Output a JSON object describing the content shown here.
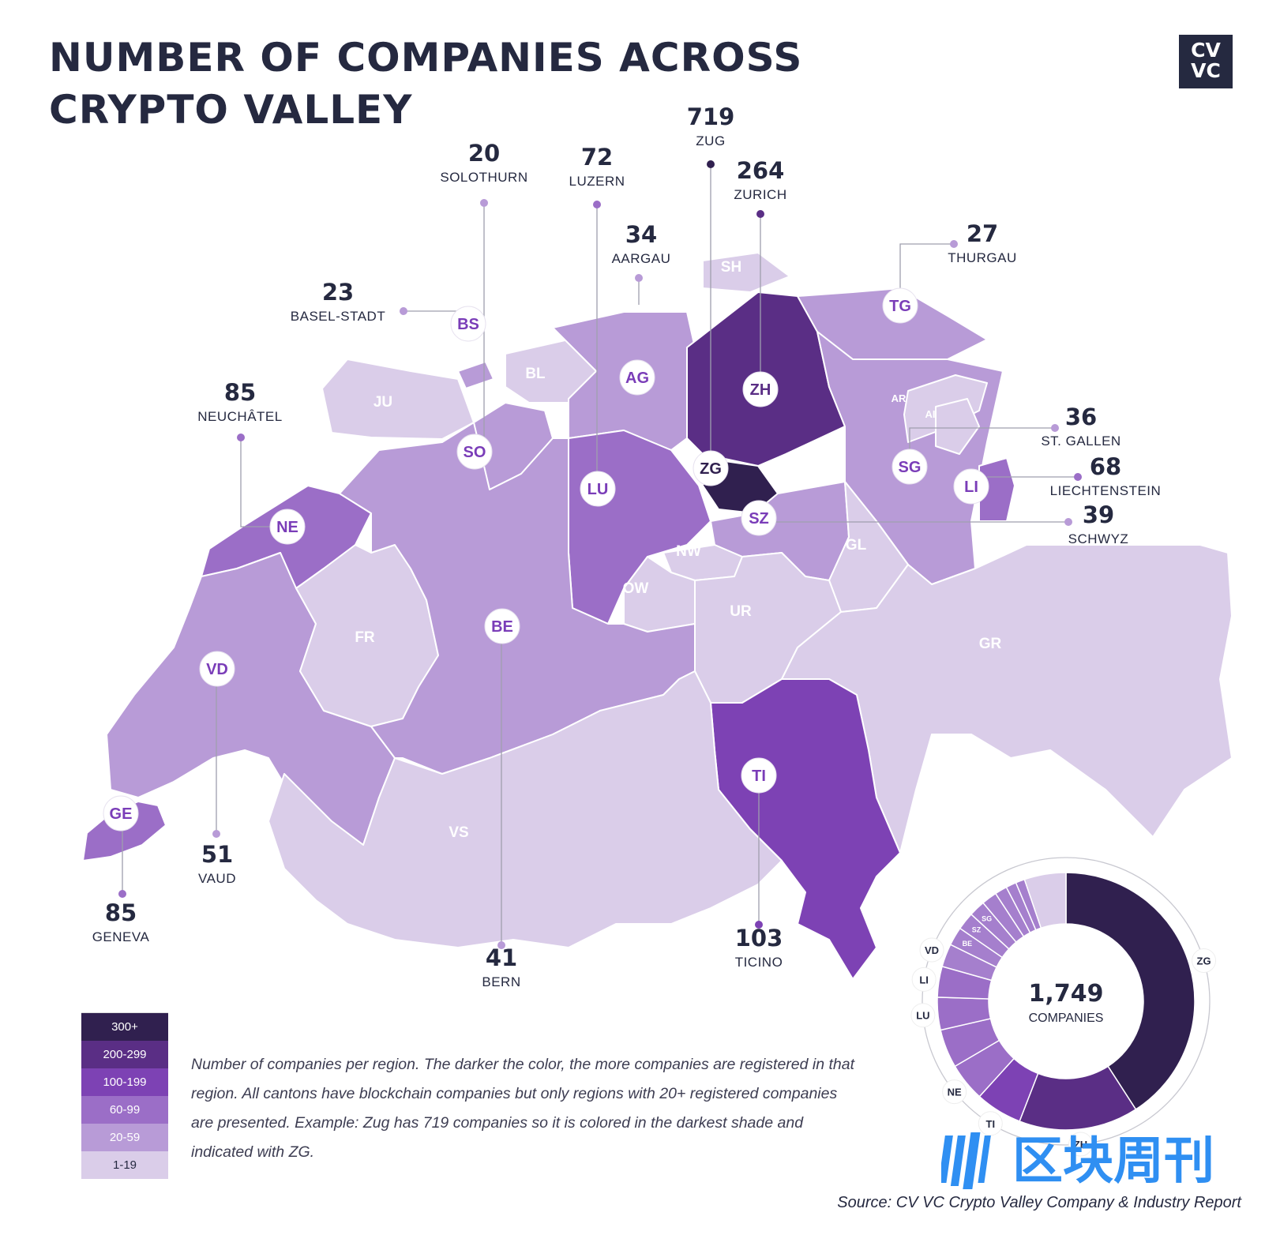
{
  "title": {
    "line1": "NUMBER OF COMPANIES ACROSS",
    "line2": "CRYPTO VALLEY"
  },
  "logo": {
    "line1": "CV",
    "line2": "VC"
  },
  "colors": {
    "tier_300_plus": "#30204f",
    "tier_200_299": "#5a2e85",
    "tier_100_199": "#7d42b4",
    "tier_60_99": "#9b6ec7",
    "tier_20_59": "#b89bd7",
    "tier_1_19": "#dacde9",
    "text_dark": "#252940",
    "badge_text": "#7a3db8"
  },
  "map_cantons": [
    {
      "code": "ZG",
      "tier": "300+"
    },
    {
      "code": "ZH",
      "tier": "200-299"
    },
    {
      "code": "TI",
      "tier": "100-199"
    },
    {
      "code": "LU",
      "tier": "60-99"
    },
    {
      "code": "NE",
      "tier": "60-99"
    },
    {
      "code": "GE",
      "tier": "60-99"
    },
    {
      "code": "LI",
      "tier": "60-99"
    },
    {
      "code": "VD",
      "tier": "20-59"
    },
    {
      "code": "BE",
      "tier": "20-59"
    },
    {
      "code": "SG",
      "tier": "20-59"
    },
    {
      "code": "SZ",
      "tier": "20-59"
    },
    {
      "code": "AG",
      "tier": "20-59"
    },
    {
      "code": "TG",
      "tier": "20-59"
    },
    {
      "code": "BS",
      "tier": "20-59"
    },
    {
      "code": "SO",
      "tier": "20-59"
    },
    {
      "code": "JU",
      "tier": "1-19"
    },
    {
      "code": "BL",
      "tier": "1-19"
    },
    {
      "code": "SH",
      "tier": "1-19"
    },
    {
      "code": "FR",
      "tier": "1-19"
    },
    {
      "code": "VS",
      "tier": "1-19"
    },
    {
      "code": "OW",
      "tier": "1-19"
    },
    {
      "code": "NW",
      "tier": "1-19"
    },
    {
      "code": "UR",
      "tier": "1-19"
    },
    {
      "code": "GL",
      "tier": "1-19"
    },
    {
      "code": "GR",
      "tier": "1-19"
    },
    {
      "code": "AR",
      "tier": "1-19"
    },
    {
      "code": "AI",
      "tier": "1-19"
    }
  ],
  "callouts": [
    {
      "code": "ZG",
      "value": "719",
      "name": "ZUG"
    },
    {
      "code": "ZH",
      "value": "264",
      "name": "ZURICH"
    },
    {
      "code": "SO",
      "value": "20",
      "name": "SOLOTHURN"
    },
    {
      "code": "LU",
      "value": "72",
      "name": "LUZERN"
    },
    {
      "code": "AG",
      "value": "34",
      "name": "AARGAU"
    },
    {
      "code": "TG",
      "value": "27",
      "name": "THURGAU"
    },
    {
      "code": "BS",
      "value": "23",
      "name": "BASEL-STADT"
    },
    {
      "code": "NE",
      "value": "85",
      "name": "NEUCHÂTEL"
    },
    {
      "code": "SG",
      "value": "36",
      "name": "ST. GALLEN"
    },
    {
      "code": "LI",
      "value": "68",
      "name": "LIECHTENSTEIN"
    },
    {
      "code": "SZ",
      "value": "39",
      "name": "SCHWYZ"
    },
    {
      "code": "VD",
      "value": "51",
      "name": "VAUD"
    },
    {
      "code": "GE",
      "value": "85",
      "name": "GENEVA"
    },
    {
      "code": "BE",
      "value": "41",
      "name": "BERN"
    },
    {
      "code": "TI",
      "value": "103",
      "name": "TICINO"
    }
  ],
  "legend": [
    {
      "label": "300+",
      "color": "#30204f",
      "text_color": "#ffffff"
    },
    {
      "label": "200-299",
      "color": "#5a2e85",
      "text_color": "#ffffff"
    },
    {
      "label": "100-199",
      "color": "#7d42b4",
      "text_color": "#ffffff"
    },
    {
      "label": "60-99",
      "color": "#9b6ec7",
      "text_color": "#ffffff"
    },
    {
      "label": "20-59",
      "color": "#b89bd7",
      "text_color": "#ffffff"
    },
    {
      "label": "1-19",
      "color": "#dacde9",
      "text_color": "#252940"
    }
  ],
  "note": "Number of companies per region. The darker the color, the more companies are registered in that region. All cantons have blockchain companies but only regions with 20+ registered companies are presented. Example: Zug has 719 companies so it is colored in the darkest shade and indicated with ZG.",
  "chart_data": {
    "type": "pie",
    "subtype": "donut",
    "center_value": "1,749",
    "center_label": "COMPANIES",
    "slices": [
      {
        "label": "ZG",
        "value": 719,
        "color": "#30204f"
      },
      {
        "label": "ZH",
        "value": 264,
        "color": "#5a2e85"
      },
      {
        "label": "TI",
        "value": 103,
        "color": "#7d42b4"
      },
      {
        "label": "NE",
        "value": 85,
        "color": "#9b6ec7"
      },
      {
        "label": "",
        "value": 85,
        "color": "#9b6ec7"
      },
      {
        "label": "LU",
        "value": 72,
        "color": "#9b6ec7"
      },
      {
        "label": "LI",
        "value": 68,
        "color": "#9b6ec7"
      },
      {
        "label": "VD",
        "value": 51,
        "color": "#a57fcd"
      },
      {
        "label": "BE",
        "value": 41,
        "color": "#a57fcd"
      },
      {
        "label": "SZ",
        "value": 39,
        "color": "#a57fcd"
      },
      {
        "label": "SG",
        "value": 36,
        "color": "#a57fcd"
      },
      {
        "label": "",
        "value": 34,
        "color": "#a57fcd"
      },
      {
        "label": "",
        "value": 27,
        "color": "#a57fcd"
      },
      {
        "label": "",
        "value": 23,
        "color": "#a57fcd"
      },
      {
        "label": "",
        "value": 20,
        "color": "#a57fcd"
      },
      {
        "label": "",
        "value": 92,
        "color": "#dacde9"
      }
    ]
  },
  "source": "Source: CV VC Crypto Valley Company & Industry Report",
  "watermark": "区块周刊"
}
